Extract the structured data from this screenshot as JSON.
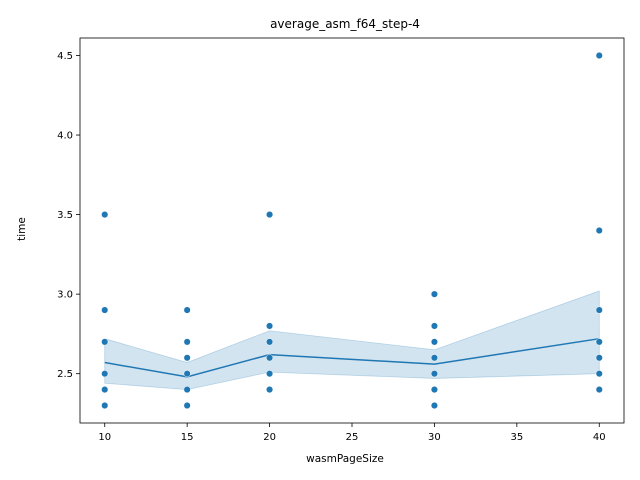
{
  "chart_data": {
    "type": "scatter",
    "title": "average_asm_f64_step-4",
    "xlabel": "wasmPageSize",
    "ylabel": "time",
    "xlim": [
      8.5,
      41.5
    ],
    "ylim": [
      2.19,
      4.61
    ],
    "xticks": [
      10,
      15,
      20,
      25,
      30,
      35,
      40
    ],
    "yticks": [
      2.5,
      3.0,
      3.5,
      4.0,
      4.5
    ],
    "xtick_labels": [
      "10",
      "15",
      "20",
      "25",
      "30",
      "35",
      "40"
    ],
    "ytick_labels": [
      "2.5",
      "3.0",
      "3.5",
      "4.0",
      "4.5"
    ],
    "grid": false,
    "colors": {
      "points": "#1f77b4",
      "line": "#1f77b4",
      "band": "#1f77b4"
    },
    "points": [
      {
        "x": 10,
        "y": 3.5
      },
      {
        "x": 10,
        "y": 2.9
      },
      {
        "x": 10,
        "y": 2.7
      },
      {
        "x": 10,
        "y": 2.5
      },
      {
        "x": 10,
        "y": 2.4
      },
      {
        "x": 10,
        "y": 2.3
      },
      {
        "x": 15,
        "y": 2.9
      },
      {
        "x": 15,
        "y": 2.7
      },
      {
        "x": 15,
        "y": 2.6
      },
      {
        "x": 15,
        "y": 2.5
      },
      {
        "x": 15,
        "y": 2.4
      },
      {
        "x": 15,
        "y": 2.3
      },
      {
        "x": 20,
        "y": 3.5
      },
      {
        "x": 20,
        "y": 2.8
      },
      {
        "x": 20,
        "y": 2.7
      },
      {
        "x": 20,
        "y": 2.6
      },
      {
        "x": 20,
        "y": 2.5
      },
      {
        "x": 20,
        "y": 2.4
      },
      {
        "x": 30,
        "y": 3.0
      },
      {
        "x": 30,
        "y": 2.8
      },
      {
        "x": 30,
        "y": 2.7
      },
      {
        "x": 30,
        "y": 2.6
      },
      {
        "x": 30,
        "y": 2.5
      },
      {
        "x": 30,
        "y": 2.4
      },
      {
        "x": 30,
        "y": 2.3
      },
      {
        "x": 40,
        "y": 4.5
      },
      {
        "x": 40,
        "y": 3.4
      },
      {
        "x": 40,
        "y": 2.9
      },
      {
        "x": 40,
        "y": 2.7
      },
      {
        "x": 40,
        "y": 2.6
      },
      {
        "x": 40,
        "y": 2.5
      },
      {
        "x": 40,
        "y": 2.4
      }
    ],
    "mean_line": {
      "x": [
        10,
        15,
        20,
        30,
        40
      ],
      "y": [
        2.57,
        2.48,
        2.62,
        2.56,
        2.72
      ]
    },
    "confidence_band": {
      "x": [
        10,
        15,
        20,
        30,
        40
      ],
      "lower": [
        2.44,
        2.4,
        2.51,
        2.47,
        2.5
      ],
      "upper": [
        2.72,
        2.57,
        2.77,
        2.65,
        3.02
      ]
    }
  }
}
